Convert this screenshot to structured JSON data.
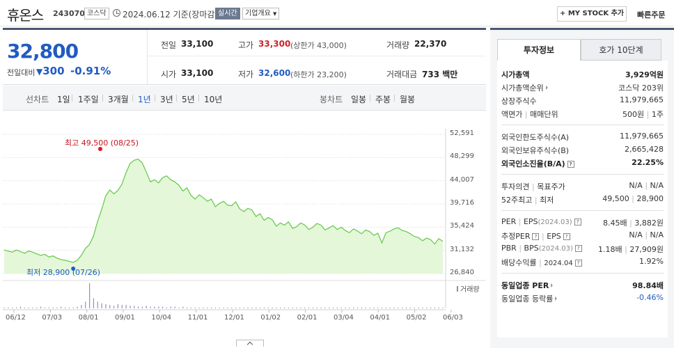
{
  "header": {
    "name": "휴온스",
    "code": "243070",
    "market": "코스닥",
    "date": "2024.06.12",
    "basis": "기준(장마감)",
    "live_label": "실시간",
    "company_overview": "기업개요",
    "mystock_button": "+ MY STOCK 추가",
    "quick_order": "빠른주문"
  },
  "price": {
    "current": "32,800",
    "change_label": "전일대비",
    "change": "300",
    "change_pct": "-0.91%",
    "prev_label": "전일",
    "prev": "33,100",
    "high_label": "고가",
    "high": "33,300",
    "upper_limit": "(상한가 43,000)",
    "volume_label": "거래량",
    "volume": "22,370",
    "open_label": "시가",
    "open": "33,100",
    "low_label": "저가",
    "low": "32,600",
    "lower_limit": "(하한가 23,200)",
    "amount_label": "거래대금",
    "amount": "733 백만"
  },
  "periods": {
    "line_label": "선차트",
    "line_items": [
      "1일",
      "1주일",
      "3개월",
      "1년",
      "3년",
      "5년",
      "10년"
    ],
    "active": "1년",
    "candle_label": "봉차트",
    "candle_items": [
      "일봉",
      "주봉",
      "월봉"
    ]
  },
  "chart_data": {
    "type": "area",
    "y_ticks": [
      "52,591",
      "48,299",
      "44,007",
      "39,716",
      "35,424",
      "31,132",
      "26,840"
    ],
    "ylim": [
      26840,
      52591
    ],
    "x_ticks": [
      "06/12",
      "07/03",
      "08/01",
      "09/01",
      "10/04",
      "11/01",
      "12/01",
      "01/02",
      "02/01",
      "03/04",
      "04/01",
      "05/02",
      "06/03"
    ],
    "high_annotation": "최고 49,500 (08/25)",
    "low_annotation": "최저 28,900 (07/26)",
    "volume_label": "거래량",
    "line_color": "#62c845",
    "fill_color": "#e4f7d9",
    "series": [
      {
        "values": [
          31200,
          31000,
          30800,
          31200,
          30900,
          30600,
          31000,
          30800,
          30500,
          30200,
          30400,
          29900,
          30100,
          29700,
          29400,
          29300,
          29100,
          28900,
          29300,
          30200,
          31500,
          32200,
          33800,
          36500,
          38700,
          41200,
          42300,
          41600,
          42200,
          43400,
          45500,
          47200,
          47800,
          48000,
          47300,
          45600,
          43800,
          44200,
          43600,
          44600,
          44900,
          44200,
          43800,
          43200,
          42100,
          42700,
          41300,
          40600,
          41400,
          40900,
          40200,
          40600,
          39200,
          39800,
          40200,
          39500,
          39400,
          40100,
          38800,
          38300,
          38900,
          38600,
          37400,
          37900,
          36700,
          37200,
          36800,
          35600,
          36200,
          35800,
          36400,
          35200,
          35500,
          36200,
          35800,
          35000,
          35400,
          36100,
          35800,
          34900,
          35300,
          35700,
          35000,
          35400,
          34800,
          34400,
          35100,
          34700,
          34200,
          34900,
          34600,
          33900,
          34300,
          32500,
          34400,
          34700,
          35100,
          35300,
          34800,
          34600,
          34200,
          33700,
          33500,
          32900,
          33400,
          33100,
          32300,
          33300,
          32800
        ]
      }
    ],
    "volumes": [
      1,
      1,
      1,
      1,
      2,
      1,
      1,
      1,
      1,
      2,
      1,
      1,
      1,
      1,
      2,
      1,
      1,
      1,
      2,
      4,
      8,
      30,
      12,
      8,
      6,
      5,
      4,
      3,
      5,
      4,
      4,
      3,
      3,
      2,
      2,
      3,
      2,
      2,
      2,
      2,
      1,
      2,
      2,
      1,
      2,
      1,
      1,
      1,
      1,
      1,
      1,
      1,
      1,
      1,
      1,
      1,
      1,
      1,
      1,
      1,
      1,
      1,
      1,
      1,
      1,
      1,
      1,
      1,
      1,
      1,
      1,
      1,
      1,
      1,
      1,
      1,
      1,
      1,
      1,
      1,
      1,
      1,
      1,
      1,
      1,
      1,
      1,
      1,
      1,
      1,
      1,
      1,
      1,
      1,
      1,
      1,
      1,
      1,
      1,
      1,
      1,
      1,
      1,
      1,
      1,
      1,
      1,
      1,
      1
    ]
  },
  "side": {
    "tab_active": "투자정보",
    "tab_inactive": "호가 10단계",
    "market_cap_label": "시가총액",
    "market_cap": "3,929억원",
    "cap_rank_label": "시가총액순위",
    "cap_rank": "코스닥 203위",
    "shares_label": "상장주식수",
    "shares": "11,979,665",
    "par_label": "액면가",
    "unit_label": "매매단위",
    "par": "500원",
    "unit": "1주",
    "foreign_limit_label": "외국인한도주식수(A)",
    "foreign_limit": "11,979,665",
    "foreign_hold_label": "외국인보유주식수(B)",
    "foreign_hold": "2,665,428",
    "foreign_rate_label": "외국인소진율(B/A)",
    "foreign_rate": "22.25%",
    "opinion_label": "투자의견",
    "target_label": "목표주가",
    "opinion": "N/A",
    "target": "N/A",
    "w52_high_label": "52주최고",
    "w52_low_label": "최저",
    "w52_high": "49,500",
    "w52_low": "28,900",
    "per_label": "PER",
    "eps_label": "EPS",
    "per_period": "(2024.03)",
    "per": "8.45배",
    "eps": "3,882원",
    "est_per_label": "추정PER",
    "est_eps_label": "EPS",
    "est_per": "N/A",
    "est_eps": "N/A",
    "pbr_label": "PBR",
    "bps_label": "BPS",
    "pbr_period": "(2024.03)",
    "pbr": "1.18배",
    "bps": "27,909원",
    "div_label": "배당수익률",
    "div_period": "2024.04",
    "div": "1.92%",
    "ind_per_label": "동일업종 PER",
    "ind_per": "98.84배",
    "ind_rate_label": "동일업종 등락률",
    "ind_rate": "-0.46%"
  }
}
